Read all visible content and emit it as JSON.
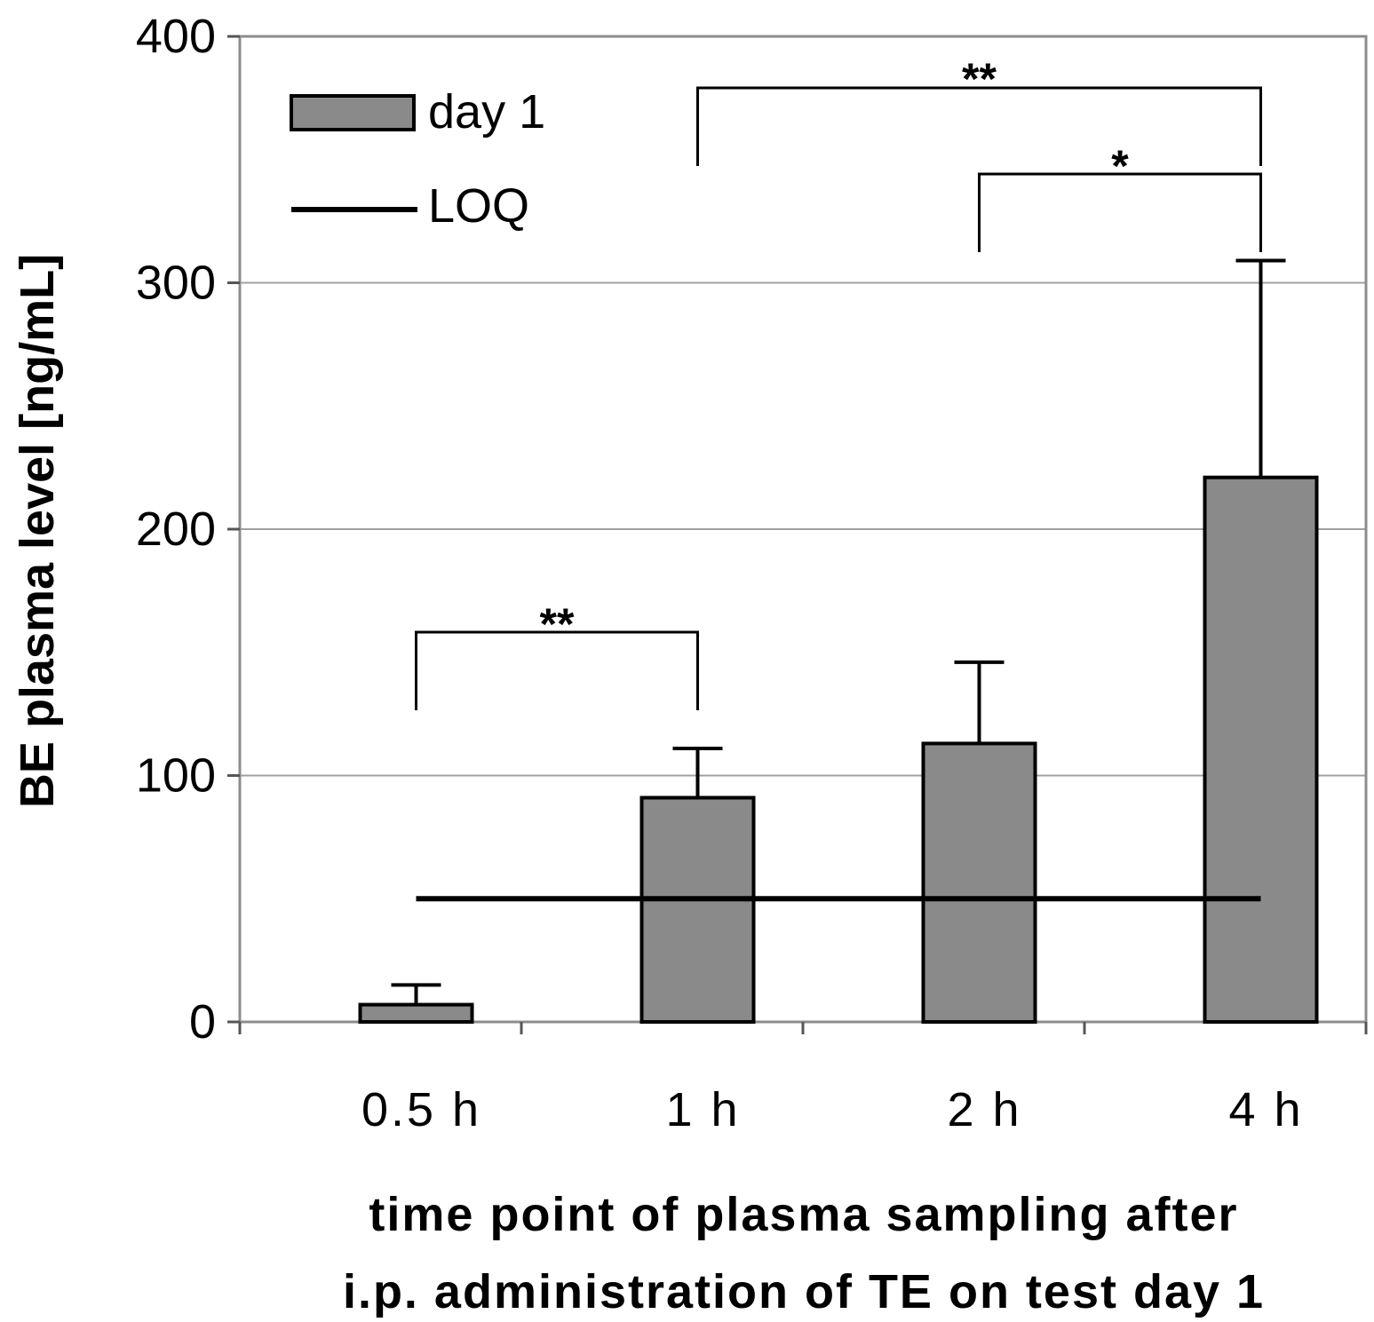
{
  "chart_data": {
    "type": "bar",
    "categories": [
      "0.5 h",
      "1 h",
      "2 h",
      "4 h"
    ],
    "series": [
      {
        "name": "day 1",
        "values": [
          7,
          91,
          113,
          221
        ],
        "error_upper": [
          15,
          111,
          146,
          309
        ]
      }
    ],
    "reference_line": {
      "name": "LOQ",
      "value": 50
    },
    "ylim": [
      0,
      400
    ],
    "yticks": [
      "0",
      "100",
      "200",
      "300",
      "400"
    ],
    "ylabel": "BE plasma level [ng/mL]",
    "xlabel_line1": "time point of plasma sampling after",
    "xlabel_line2": "i.p. administration of TE on test day 1",
    "legend": {
      "position": "top-left",
      "bar_label": "day 1",
      "line_label": "LOQ"
    },
    "significance": [
      {
        "from": "0.5 h",
        "to": "1 h",
        "label": "**"
      },
      {
        "from": "1 h",
        "to": "4 h",
        "label": "**"
      },
      {
        "from": "2 h",
        "to": "4 h",
        "label": "*"
      }
    ],
    "colors": {
      "bar": "#8a8a8a",
      "grid": "#a0a0a0"
    }
  }
}
